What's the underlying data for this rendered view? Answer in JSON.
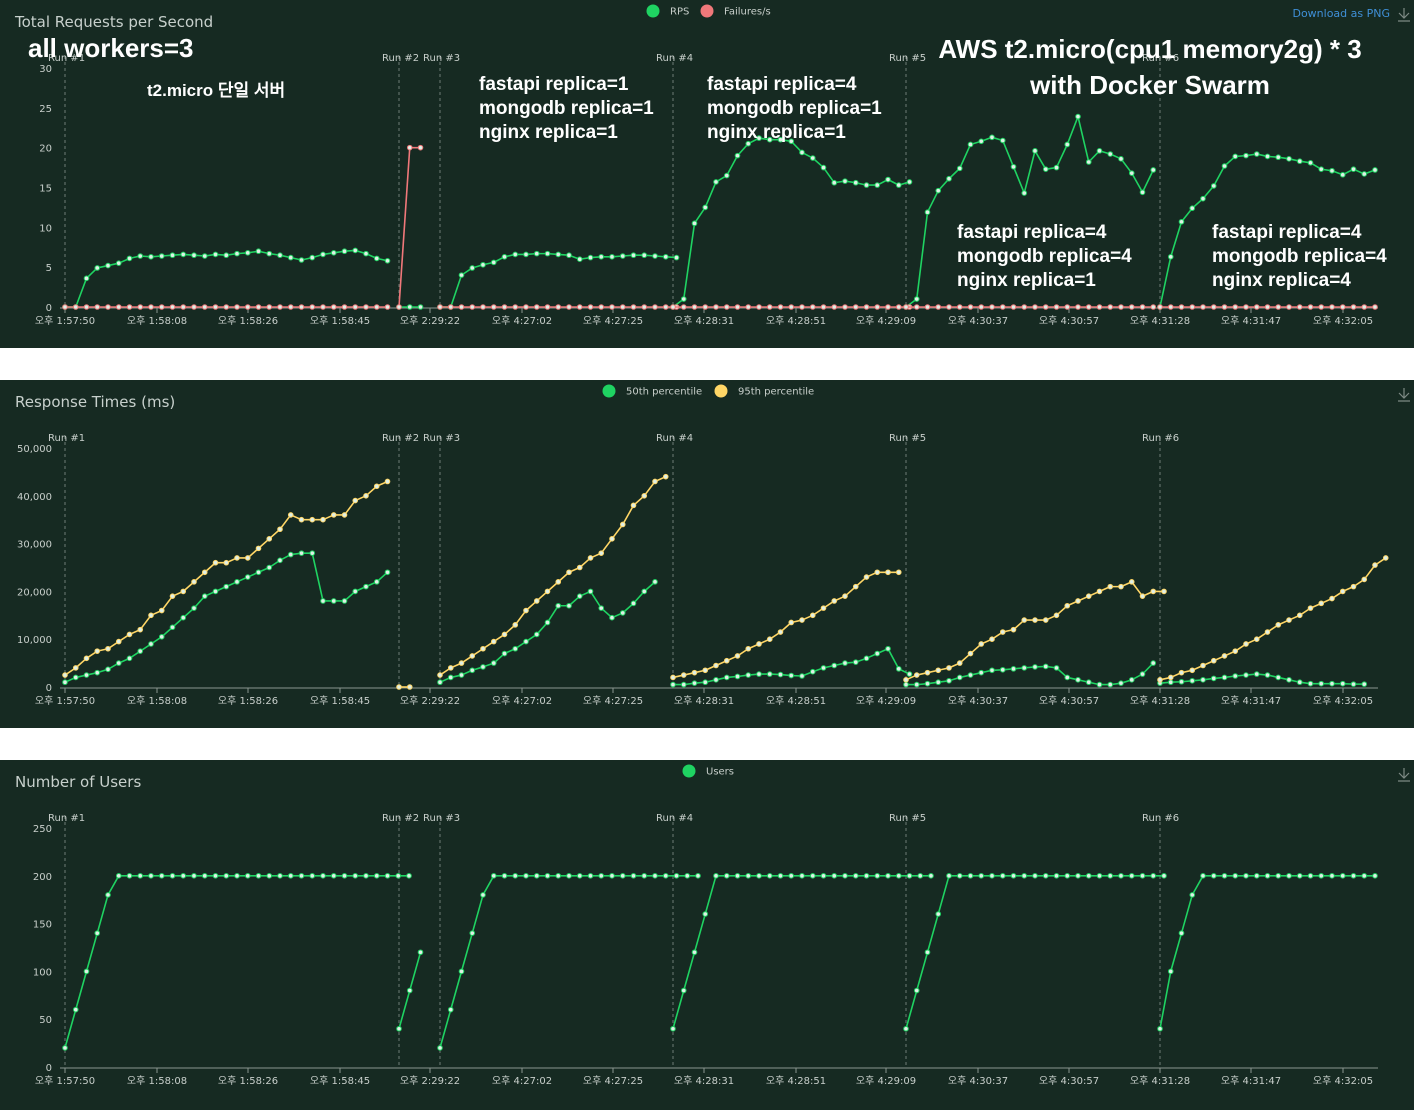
{
  "colors": {
    "background": "#162a22",
    "green": "#1fd362",
    "red": "#f0787a",
    "yellow": "#ffd666",
    "text": "#c8cfcb",
    "link": "#3f8fd6",
    "axis": "#8a9690"
  },
  "download_label": "Download as PNG",
  "x_ticks": [
    "오후 1:57:50",
    "오후 1:58:08",
    "오후 1:58:26",
    "오후 1:58:45",
    "오후 2:29:22",
    "오후 4:27:02",
    "오후 4:27:25",
    "오후 4:28:31",
    "오후 4:28:51",
    "오후 4:29:09",
    "오후 4:30:37",
    "오후 4:30:57",
    "오후 4:31:28",
    "오후 4:31:47",
    "오후 4:32:05"
  ],
  "annotations": {
    "workers": "all workers=3",
    "single_server": "t2.micro 단일 서버",
    "aws_line1": "AWS t2.micro(cpu1 memory2g) * 3",
    "aws_line2": "with Docker Swarm",
    "run3": [
      "fastapi replica=1",
      "mongodb replica=1",
      "nginx replica=1"
    ],
    "run4": [
      "fastapi replica=4",
      "mongodb replica=1",
      "nginx replica=1"
    ],
    "run5": [
      "fastapi replica=4",
      "mongodb replica=4",
      "nginx replica=1"
    ],
    "run6": [
      "fastapi replica=4",
      "mongodb replica=4",
      "nginx replica=4"
    ]
  },
  "chart_data": [
    {
      "type": "line",
      "title": "Total Requests per Second",
      "yticks": [
        "0",
        "5",
        "10",
        "15",
        "20",
        "25",
        "30"
      ],
      "ylim": [
        0,
        30
      ],
      "runs": [
        "Run #1",
        "Run #2",
        "Run #3",
        "Run #4",
        "Run #5",
        "Run #6"
      ],
      "series": [
        {
          "name": "RPS",
          "color": "#1fd362",
          "segments": [
            [
              0,
              0,
              3.6,
              4.9,
              5.2,
              5.5,
              6.1,
              6.4,
              6.3,
              6.4,
              6.5,
              6.6,
              6.5,
              6.4,
              6.6,
              6.5,
              6.7,
              6.8,
              7.0,
              6.7,
              6.5,
              6.2,
              5.9,
              6.2,
              6.6,
              6.8,
              7.0,
              7.1,
              6.7,
              6.1,
              5.8
            ],
            [
              0,
              0,
              0
            ],
            [
              0,
              0,
              4.0,
              4.9,
              5.3,
              5.6,
              6.3,
              6.6,
              6.6,
              6.7,
              6.7,
              6.6,
              6.5,
              6.0,
              6.2,
              6.3,
              6.3,
              6.4,
              6.5,
              6.5,
              6.4,
              6.3,
              6.2
            ],
            [
              0,
              1.0,
              10.5,
              12.5,
              15.7,
              16.5,
              19.0,
              20.5,
              21.2,
              21.0,
              21.0,
              20.8,
              19.4,
              18.7,
              17.5,
              15.6,
              15.8,
              15.6,
              15.3,
              15.3,
              16.0,
              15.3,
              15.7
            ],
            [
              0,
              1.0,
              11.9,
              14.6,
              16.1,
              17.4,
              20.4,
              20.8,
              21.3,
              20.9,
              17.6,
              14.3,
              19.6,
              17.3,
              17.5,
              20.4,
              23.9,
              18.2,
              19.6,
              19.2,
              18.6,
              16.8,
              14.4,
              17.2
            ],
            [
              0,
              6.3,
              10.7,
              12.4,
              13.6,
              15.2,
              17.7,
              18.9,
              19.0,
              19.2,
              18.9,
              18.8,
              18.6,
              18.3,
              18.1,
              17.3,
              17.1,
              16.6,
              17.3,
              16.7,
              17.2
            ]
          ]
        },
        {
          "name": "Failures/s",
          "color": "#f0787a",
          "segments": [
            [
              0,
              0,
              0,
              0,
              0,
              0,
              0,
              0,
              0,
              0,
              0,
              0,
              0,
              0,
              0,
              0,
              0,
              0,
              0,
              0,
              0,
              0,
              0,
              0,
              0,
              0,
              0,
              0,
              0,
              0,
              0
            ],
            [
              0,
              20,
              20
            ],
            [
              0,
              0,
              0,
              0,
              0,
              0,
              0,
              0,
              0,
              0,
              0,
              0,
              0,
              0,
              0,
              0,
              0,
              0,
              0,
              0,
              0,
              0,
              0
            ],
            [
              0,
              0,
              0,
              0,
              0,
              0,
              0,
              0,
              0,
              0,
              0,
              0,
              0,
              0,
              0,
              0,
              0,
              0,
              0,
              0,
              0,
              0,
              0
            ],
            [
              0,
              0,
              0,
              0,
              0,
              0,
              0,
              0,
              0,
              0,
              0,
              0,
              0,
              0,
              0,
              0,
              0,
              0,
              0,
              0,
              0,
              0,
              0,
              0
            ],
            [
              0,
              0,
              0,
              0,
              0,
              0,
              0,
              0,
              0,
              0,
              0,
              0,
              0,
              0,
              0,
              0,
              0,
              0,
              0,
              0,
              0
            ]
          ]
        }
      ]
    },
    {
      "type": "line",
      "title": "Response Times (ms)",
      "yticks": [
        "0",
        "10,000",
        "20,000",
        "30,000",
        "40,000",
        "50,000"
      ],
      "ylim": [
        0,
        50000
      ],
      "runs": [
        "Run #1",
        "Run #2",
        "Run #3",
        "Run #4",
        "Run #5",
        "Run #6"
      ],
      "series": [
        {
          "name": "50th percentile",
          "color": "#1fd362",
          "segments": [
            [
              1000,
              2000,
              2500,
              3000,
              3700,
              5000,
              6000,
              7500,
              9000,
              10500,
              12500,
              14500,
              16500,
              19000,
              20000,
              21000,
              22000,
              23000,
              24000,
              25000,
              26500,
              27700,
              28000,
              28000,
              18000,
              18000,
              18000,
              20000,
              21000,
              22000,
              24000
            ],
            [],
            [
              1000,
              2000,
              2500,
              3500,
              4200,
              5000,
              7000,
              8000,
              9500,
              11000,
              13500,
              17000,
              17000,
              19000,
              20000,
              16500,
              14500,
              15500,
              17500,
              20000,
              22000
            ],
            [
              500,
              500,
              800,
              1000,
              1500,
              2000,
              2200,
              2500,
              2700,
              2700,
              2600,
              2400,
              2300,
              3200,
              4000,
              4500,
              5000,
              5200,
              6000,
              7000,
              8000,
              3800,
              2700
            ],
            [
              500,
              500,
              700,
              1000,
              1300,
              2000,
              2500,
              3000,
              3500,
              3600,
              3800,
              4000,
              4200,
              4300,
              4000,
              2000,
              1500,
              1000,
              500,
              500,
              800,
              1500,
              2700,
              5000
            ],
            [
              800,
              1000,
              1100,
              1300,
              1500,
              1800,
              2000,
              2300,
              2500,
              2700,
              2500,
              2000,
              1500,
              1000,
              700,
              700,
              700,
              700,
              600,
              600
            ]
          ]
        },
        {
          "name": "95th percentile",
          "color": "#ffd666",
          "segments": [
            [
              2500,
              4000,
              6000,
              7500,
              8000,
              9500,
              11000,
              12000,
              15000,
              16000,
              19000,
              20000,
              22000,
              24000,
              26000,
              26000,
              27000,
              27000,
              29000,
              31000,
              33000,
              36000,
              35000,
              35000,
              35000,
              36000,
              36000,
              39000,
              40000,
              42000,
              43000
            ],
            [
              0,
              0
            ],
            [
              2500,
              4000,
              5000,
              6500,
              8000,
              9500,
              11000,
              13000,
              16000,
              18000,
              20000,
              22000,
              24000,
              25000,
              27000,
              28000,
              31000,
              34000,
              38000,
              40000,
              43000,
              44000
            ],
            [
              2000,
              2500,
              3000,
              3500,
              4500,
              5500,
              6500,
              8000,
              9000,
              10000,
              11500,
              13500,
              14000,
              15000,
              16500,
              18000,
              19000,
              21000,
              23000,
              24000,
              24000,
              24000
            ],
            [
              1500,
              2500,
              3000,
              3500,
              4000,
              5000,
              7000,
              9000,
              10000,
              11500,
              12000,
              14000,
              14000,
              14000,
              15000,
              17000,
              18000,
              19000,
              20000,
              21000,
              21000,
              22000,
              19000,
              20000,
              20000
            ],
            [
              1500,
              2000,
              3000,
              3500,
              4500,
              5500,
              6500,
              7500,
              9000,
              10000,
              11500,
              13000,
              14000,
              15000,
              16500,
              17500,
              18500,
              20000,
              21000,
              22500,
              25500,
              27000
            ]
          ]
        }
      ]
    },
    {
      "type": "line",
      "title": "Number of Users",
      "yticks": [
        "0",
        "50",
        "100",
        "150",
        "200",
        "250"
      ],
      "ylim": [
        0,
        250
      ],
      "runs": [
        "Run #1",
        "Run #2",
        "Run #3",
        "Run #4",
        "Run #5",
        "Run #6"
      ],
      "series": [
        {
          "name": "Users",
          "color": "#1fd362",
          "segments": [
            [
              20,
              60,
              100,
              140,
              180,
              200,
              200,
              200,
              200,
              200,
              200,
              200,
              200,
              200,
              200,
              200,
              200,
              200,
              200,
              200,
              200,
              200,
              200,
              200,
              200,
              200,
              200,
              200,
              200,
              200,
              200,
              200,
              200
            ],
            [
              40,
              80,
              120
            ],
            [
              20,
              60,
              100,
              140,
              180,
              200,
              200,
              200,
              200,
              200,
              200,
              200,
              200,
              200,
              200,
              200,
              200,
              200,
              200,
              200,
              200,
              200,
              200,
              200,
              200
            ],
            [
              40,
              80,
              120,
              160,
              200,
              200,
              200,
              200,
              200,
              200,
              200,
              200,
              200,
              200,
              200,
              200,
              200,
              200,
              200,
              200,
              200,
              200,
              200,
              200,
              200
            ],
            [
              40,
              80,
              120,
              160,
              200,
              200,
              200,
              200,
              200,
              200,
              200,
              200,
              200,
              200,
              200,
              200,
              200,
              200,
              200,
              200,
              200,
              200,
              200,
              200,
              200
            ],
            [
              40,
              100,
              140,
              180,
              200,
              200,
              200,
              200,
              200,
              200,
              200,
              200,
              200,
              200,
              200,
              200,
              200,
              200,
              200,
              200,
              200
            ]
          ]
        }
      ]
    }
  ]
}
